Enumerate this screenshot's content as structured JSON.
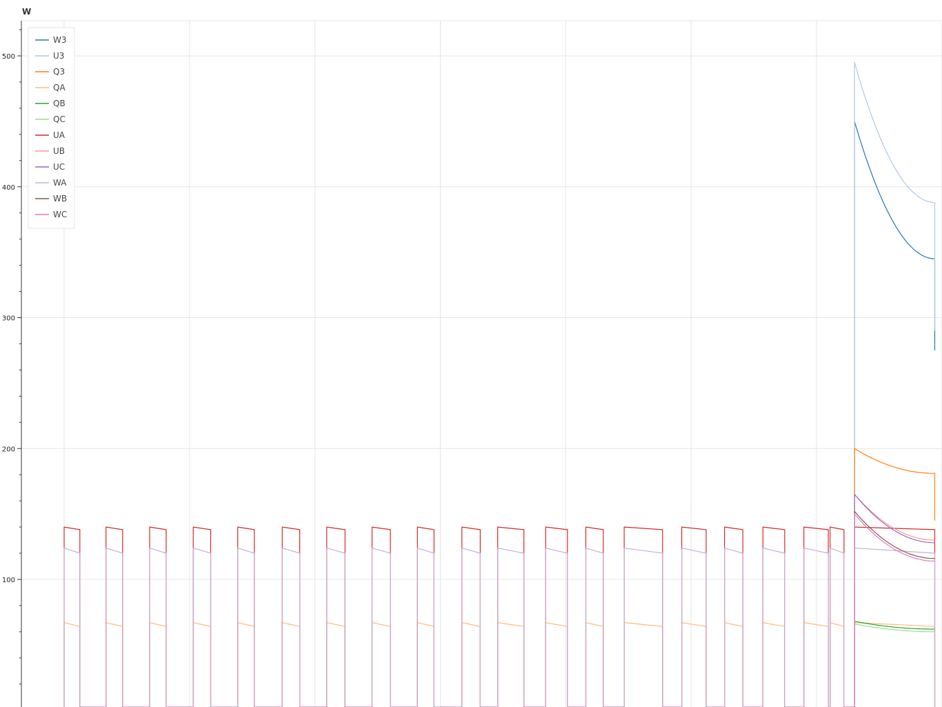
{
  "chart_data": {
    "type": "line",
    "unit_label": "W",
    "ylim": [
      0,
      500
    ],
    "yticks": [
      100,
      200,
      300,
      400,
      500
    ],
    "x_gridlines": 8,
    "grid": true,
    "legend_position": "top-left",
    "series": [
      {
        "name": "W3",
        "color": "#1f77b4",
        "y": {
          "base": 0,
          "seg": [
            [
              0.906,
              450,
              345
            ]
          ],
          "tail": 275
        }
      },
      {
        "name": "U3",
        "color": "#aec7e8",
        "y": {
          "base": 0,
          "seg": [
            [
              0.906,
              495,
              388
            ]
          ],
          "tail": 290
        }
      },
      {
        "name": "Q3",
        "color": "#ff7f0e",
        "y": {
          "base": 0,
          "seg": [
            [
              0.906,
              200,
              181
            ]
          ],
          "tail": 145
        }
      },
      {
        "name": "QA",
        "color": "#ffbb78",
        "y": {
          "base": 0,
          "cycle": [
            67,
            64
          ]
        }
      },
      {
        "name": "QB",
        "color": "#2ca02c",
        "y": {
          "base": 0,
          "seg": [
            [
              0.906,
              68,
              62
            ]
          ]
        }
      },
      {
        "name": "QC",
        "color": "#98df8a",
        "y": {
          "base": 0,
          "seg": [
            [
              0.906,
              66,
              60
            ]
          ]
        }
      },
      {
        "name": "UA",
        "color": "#d62728",
        "y": {
          "base": 0,
          "cycle": [
            140,
            138
          ]
        }
      },
      {
        "name": "UB",
        "color": "#ff9896",
        "y": {
          "base": 0,
          "seg": [
            [
              0.906,
              165,
              130
            ]
          ]
        }
      },
      {
        "name": "UC",
        "color": "#9467bd",
        "y": {
          "base": 0,
          "seg": [
            [
              0.906,
              165,
              128
            ]
          ]
        }
      },
      {
        "name": "WA",
        "color": "#c5b0d5",
        "y": {
          "base": 0,
          "cycle": [
            124,
            120
          ]
        }
      },
      {
        "name": "WB",
        "color": "#8c564b",
        "y": {
          "base": 0,
          "seg": [
            [
              0.906,
              152,
              116
            ]
          ]
        }
      },
      {
        "name": "WC",
        "color": "#e377c2",
        "y": {
          "base": 0,
          "seg": [
            [
              0.906,
              150,
              114
            ]
          ]
        }
      }
    ],
    "cycles_x": [
      [
        0.0,
        0.018
      ],
      [
        0.048,
        0.067
      ],
      [
        0.098,
        0.117
      ],
      [
        0.148,
        0.168
      ],
      [
        0.199,
        0.218
      ],
      [
        0.25,
        0.27
      ],
      [
        0.301,
        0.322
      ],
      [
        0.353,
        0.374
      ],
      [
        0.405,
        0.424
      ],
      [
        0.456,
        0.477
      ],
      [
        0.497,
        0.527
      ],
      [
        0.552,
        0.577
      ],
      [
        0.598,
        0.618
      ],
      [
        0.642,
        0.686
      ],
      [
        0.708,
        0.736
      ],
      [
        0.757,
        0.778
      ],
      [
        0.801,
        0.826
      ],
      [
        0.848,
        0.876
      ],
      [
        0.878,
        0.894
      ]
    ]
  }
}
